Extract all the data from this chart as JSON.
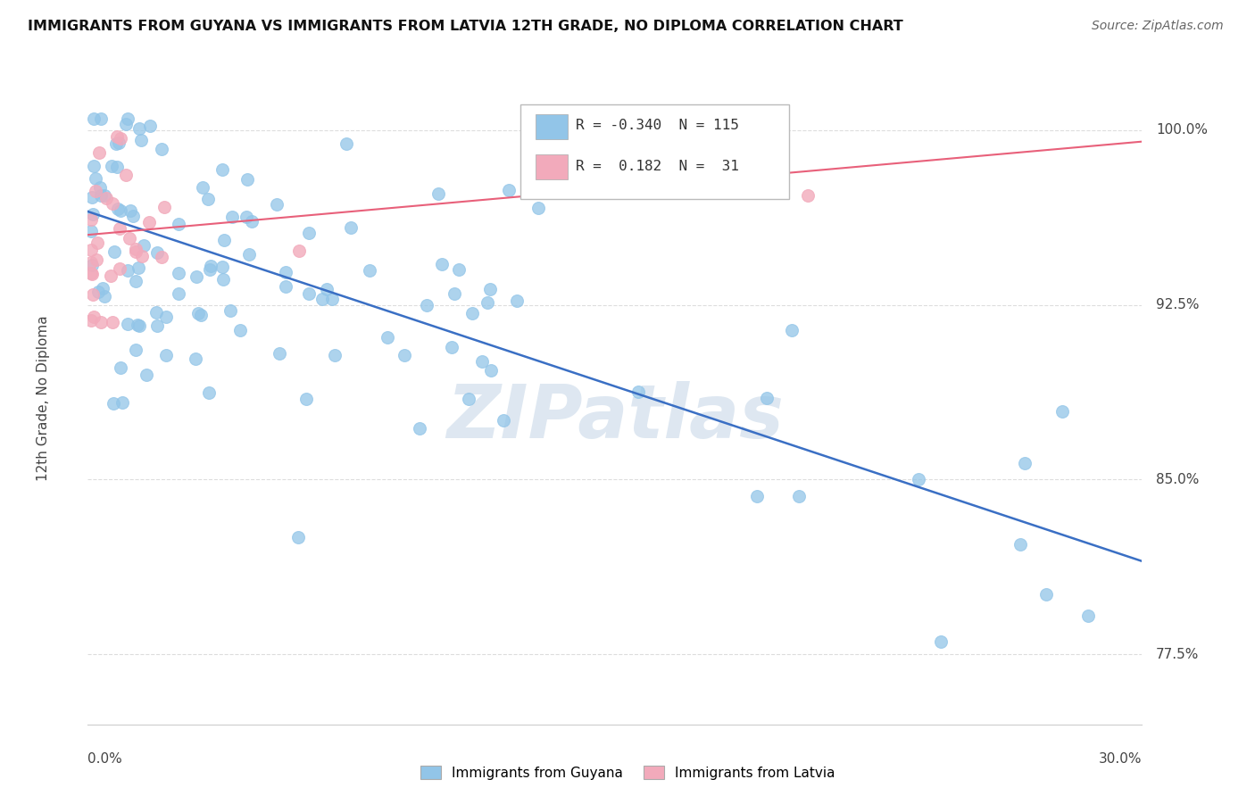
{
  "title": "IMMIGRANTS FROM GUYANA VS IMMIGRANTS FROM LATVIA 12TH GRADE, NO DIPLOMA CORRELATION CHART",
  "source": "Source: ZipAtlas.com",
  "ylabel_label": "12th Grade, No Diploma",
  "legend_label1": "Immigrants from Guyana",
  "legend_label2": "Immigrants from Latvia",
  "legend_R1": "-0.340",
  "legend_N1": "115",
  "legend_R2": " 0.182",
  "legend_N2": " 31",
  "color_guyana": "#92C5E8",
  "color_latvia": "#F2AABB",
  "color_trend_guyana": "#3A6FC4",
  "color_trend_latvia": "#E8607A",
  "watermark": "ZIPatlas",
  "xmin": 0.0,
  "xmax": 0.3,
  "ymin": 0.745,
  "ymax": 1.025,
  "trend_guyana_x0": 0.0,
  "trend_guyana_y0": 0.965,
  "trend_guyana_x1": 0.3,
  "trend_guyana_y1": 0.815,
  "trend_latvia_x0": 0.0,
  "trend_latvia_y0": 0.955,
  "trend_latvia_x1": 0.3,
  "trend_latvia_y1": 0.995,
  "seed": 77
}
